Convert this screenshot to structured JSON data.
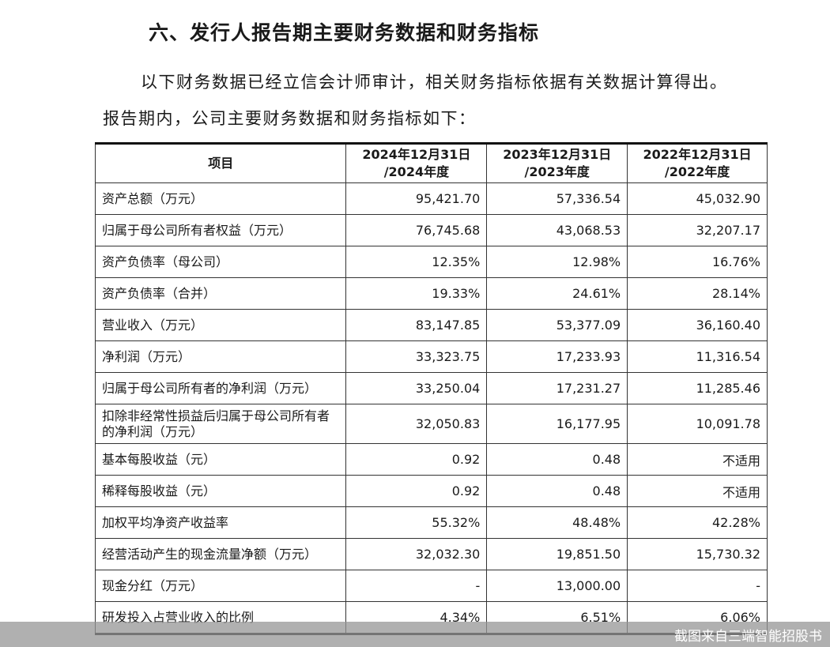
{
  "title": "六、发行人报告期主要财务数据和财务指标",
  "paragraph_1": "以下财务数据已经立信会计师审计，相关财务指标依据有关数据计算得出。",
  "paragraph_2": "报告期内，公司主要财务数据和财务指标如下：",
  "table": {
    "headers": [
      "项目",
      "2024年12月31日\n/2024年度",
      "2023年12月31日\n/2023年度",
      "2022年12月31日\n/2022年度"
    ],
    "rows": [
      [
        "资产总额（万元）",
        "95,421.70",
        "57,336.54",
        "45,032.90"
      ],
      [
        "归属于母公司所有者权益（万元）",
        "76,745.68",
        "43,068.53",
        "32,207.17"
      ],
      [
        "资产负债率（母公司）",
        "12.35%",
        "12.98%",
        "16.76%"
      ],
      [
        "资产负债率（合并）",
        "19.33%",
        "24.61%",
        "28.14%"
      ],
      [
        "营业收入（万元）",
        "83,147.85",
        "53,377.09",
        "36,160.40"
      ],
      [
        "净利润（万元）",
        "33,323.75",
        "17,233.93",
        "11,316.54"
      ],
      [
        "归属于母公司所有者的净利润（万元）",
        "33,250.04",
        "17,231.27",
        "11,285.46"
      ],
      [
        "扣除非经常性损益后归属于母公司所有者的净利润（万元）",
        "32,050.83",
        "16,177.95",
        "10,091.78"
      ],
      [
        "基本每股收益（元）",
        "0.92",
        "0.48",
        "不适用"
      ],
      [
        "稀释每股收益（元）",
        "0.92",
        "0.48",
        "不适用"
      ],
      [
        "加权平均净资产收益率",
        "55.32%",
        "48.48%",
        "42.28%"
      ],
      [
        "经营活动产生的现金流量净额（万元）",
        "32,032.30",
        "19,851.50",
        "15,730.32"
      ],
      [
        "现金分红（万元）",
        "-",
        "13,000.00",
        "-"
      ],
      [
        "研发投入占营业收入的比例",
        "4.34%",
        "6.51%",
        "6.06%"
      ]
    ]
  },
  "watermark": "截图来自三端智能招股书"
}
